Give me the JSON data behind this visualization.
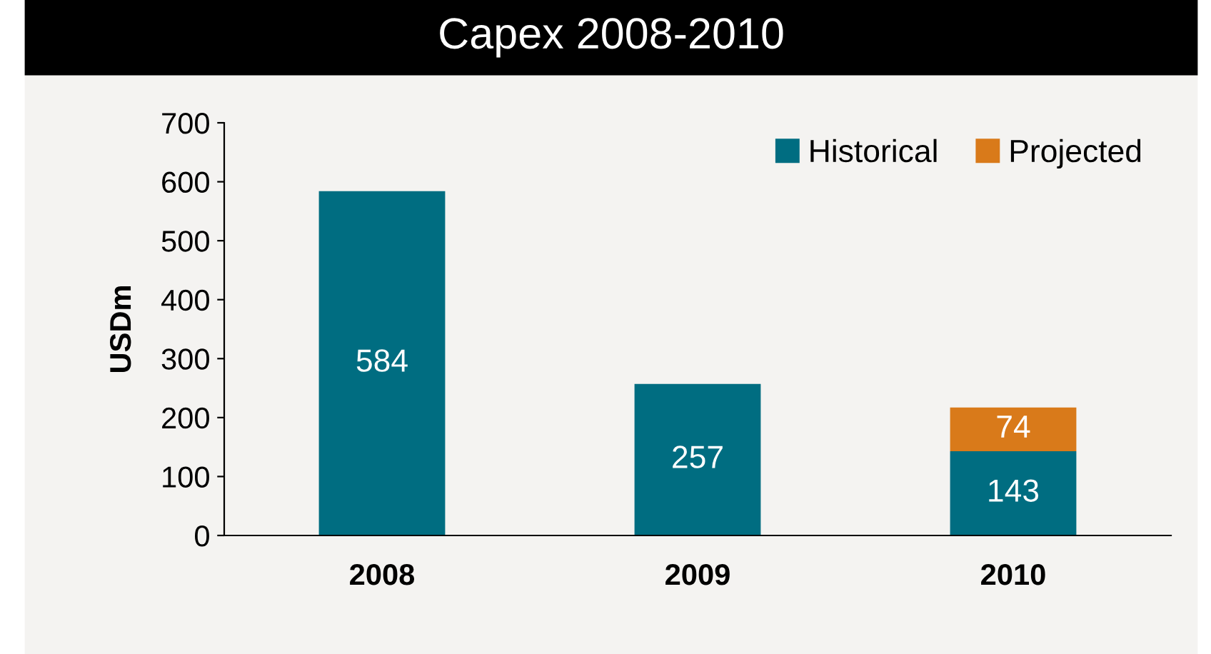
{
  "chart_data": {
    "type": "bar",
    "title": "Capex 2008-2010",
    "ylabel": "USDm",
    "categories": [
      "2008",
      "2009",
      "2010"
    ],
    "stacked": true,
    "data_labels": true,
    "series": [
      {
        "name": "Historical",
        "color": "#006d81",
        "values": [
          584,
          257,
          143
        ]
      },
      {
        "name": "Projected",
        "color": "#d97a1a",
        "values": [
          null,
          null,
          74
        ]
      }
    ],
    "ylim": [
      0,
      700
    ],
    "yticks": [
      0,
      100,
      200,
      300,
      400,
      500,
      600,
      700
    ],
    "grid": false,
    "legend": "top right"
  }
}
